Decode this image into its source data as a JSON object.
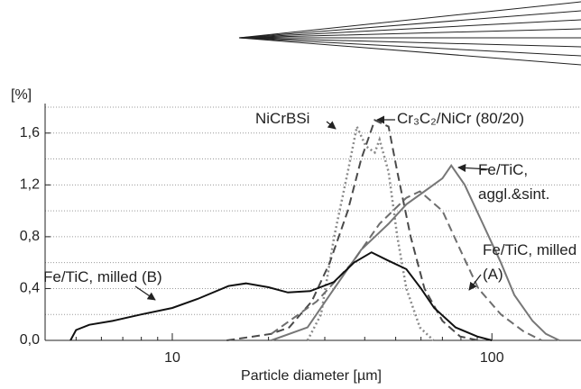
{
  "chart_data": {
    "type": "line",
    "y_unit_label": "[%]",
    "xlabel": "Particle diameter [µm]",
    "xscale": "log",
    "xlim": [
      4,
      190
    ],
    "ylim": [
      0,
      1.8
    ],
    "xticks": [
      10,
      100
    ],
    "xminor": [
      5,
      6,
      7,
      8,
      9,
      20,
      30,
      40,
      50,
      60,
      70,
      80,
      90
    ],
    "yticks": [
      {
        "value": 0,
        "label": "0,0"
      },
      {
        "value": 0.4,
        "label": "0,4"
      },
      {
        "value": 0.8,
        "label": "0,8"
      },
      {
        "value": 1.2,
        "label": "1,2"
      },
      {
        "value": 1.6,
        "label": "1,6"
      }
    ],
    "yminor": [
      0.2,
      0.6,
      1.0,
      1.4,
      1.8
    ],
    "grid": true,
    "series": [
      {
        "name": "NiCrBSi",
        "color": "#8a8a8a",
        "dash": "dotted",
        "x": [
          26.5,
          29.2,
          32.1,
          35.4,
          37.8,
          40.3,
          43.0,
          44.5,
          47.5,
          50.6,
          54.0,
          59.5,
          65.6
        ],
        "values": [
          0,
          0.2,
          0.8,
          1.3,
          1.65,
          1.5,
          1.45,
          1.55,
          1.3,
          0.8,
          0.4,
          0.1,
          0
        ]
      },
      {
        "name": "Cr₃C₂/NiCr (80/20)",
        "color": "#4a4a4a",
        "dash": "dashed",
        "x": [
          14.8,
          20.4,
          23.2,
          27.3,
          31.1,
          35.4,
          39.0,
          43.0,
          47.5,
          50.6,
          55.7,
          61.5,
          70.0,
          79.6,
          90.7
        ],
        "values": [
          0,
          0.05,
          0.1,
          0.3,
          0.6,
          1.0,
          1.4,
          1.7,
          1.65,
          1.3,
          0.8,
          0.4,
          0.15,
          0.03,
          0
        ]
      },
      {
        "name": "Fe/TiC, aggl.&sint.",
        "color": "#777777",
        "dash": "solid",
        "x": [
          20.4,
          26.5,
          32.1,
          39.0,
          47.5,
          54.0,
          61.5,
          70.0,
          74.6,
          82.2,
          93.7,
          106.7,
          117.5,
          134,
          147.6,
          162.6
        ],
        "values": [
          0,
          0.1,
          0.4,
          0.7,
          0.9,
          1.05,
          1.15,
          1.25,
          1.35,
          1.2,
          0.9,
          0.6,
          0.35,
          0.15,
          0.05,
          0
        ]
      },
      {
        "name": "Fe/TiC, milled (A)",
        "color": "#6e6e6e",
        "dash": "dashed",
        "x": [
          20.4,
          28.3,
          36.6,
          44.5,
          54.0,
          59.5,
          70.0,
          79.6,
          90.7,
          106.7,
          125.5,
          143
        ],
        "values": [
          0.05,
          0.3,
          0.6,
          0.9,
          1.1,
          1.15,
          1.0,
          0.7,
          0.4,
          0.2,
          0.07,
          0
        ]
      },
      {
        "name": "Fe/TiC, milled (B)",
        "color": "#111111",
        "dash": "solid",
        "x": [
          4.8,
          5,
          5.5,
          6.5,
          8,
          10,
          12,
          15,
          17,
          20,
          23,
          27,
          32,
          37,
          42,
          47,
          54,
          60,
          66,
          77,
          90,
          100
        ],
        "values": [
          0,
          0.08,
          0.12,
          0.15,
          0.2,
          0.25,
          0.32,
          0.42,
          0.44,
          0.41,
          0.37,
          0.38,
          0.45,
          0.6,
          0.68,
          0.62,
          0.55,
          0.4,
          0.25,
          0.1,
          0.03,
          0
        ]
      }
    ]
  }
}
